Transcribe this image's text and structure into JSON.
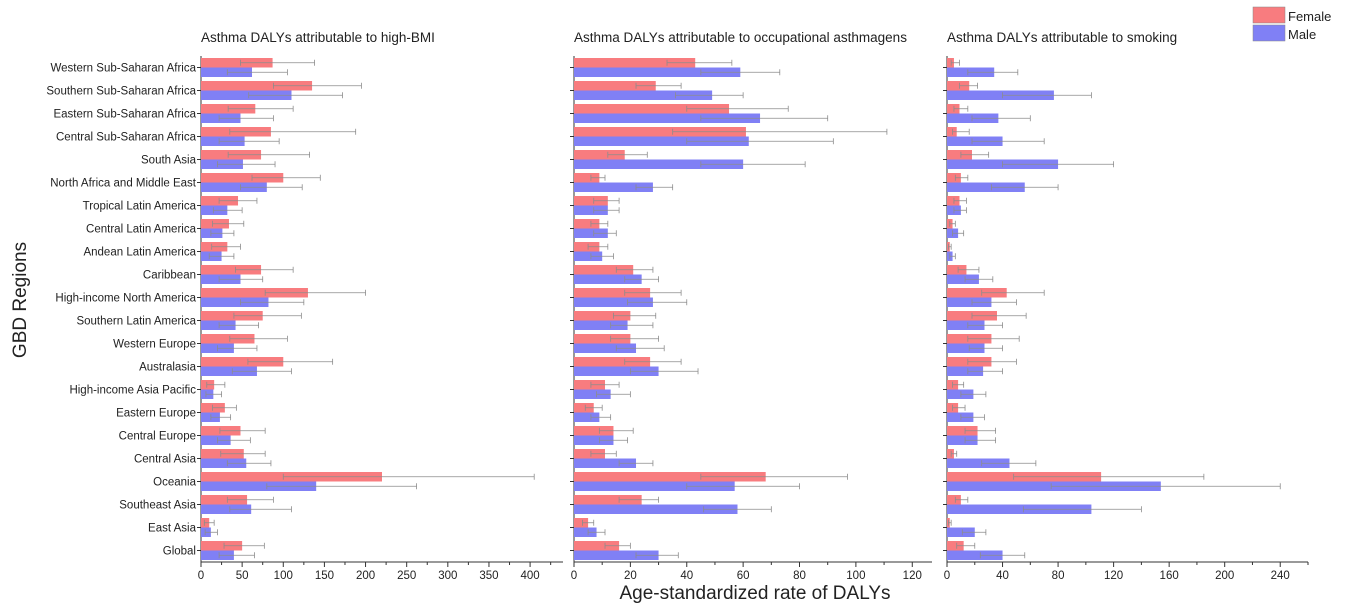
{
  "y_axis_title": "GBD Regions",
  "x_axis_title": "Age-standardized rate of DALYs",
  "legend": {
    "items": [
      {
        "label": "Female",
        "color": "#f87c7f"
      },
      {
        "label": "Male",
        "color": "#8080f5"
      }
    ],
    "position": "top-right"
  },
  "colors": {
    "female": "#f87c7f",
    "male": "#8080f5",
    "error_bar": "#8c8c8c"
  },
  "chart_data": {
    "type": "bar",
    "orientation": "horizontal",
    "categories": [
      "Western Sub-Saharan Africa",
      "Southern Sub-Saharan Africa",
      "Eastern Sub-Saharan Africa",
      "Central Sub-Saharan Africa",
      "South Asia",
      "North Africa and Middle East",
      "Tropical Latin America",
      "Central Latin America",
      "Andean Latin America",
      "Caribbean",
      "High-income North America",
      "Southern Latin America",
      "Western Europe",
      "Australasia",
      "High-income Asia Pacific",
      "Eastern Europe",
      "Central Europe",
      "Central Asia",
      "Oceania",
      "Southeast Asia",
      "East Asia",
      "Global"
    ],
    "panels": [
      {
        "title": "Asthma DALYs attributable to high-BMI",
        "xlim": [
          0,
          440
        ],
        "xticks": [
          0,
          50,
          100,
          150,
          200,
          250,
          300,
          350,
          400
        ],
        "series": [
          {
            "name": "Female",
            "values": [
              87,
              135,
              66,
              85,
              73,
              100,
              45,
              34,
              32,
              73,
              130,
              75,
              65,
              100,
              16,
              29,
              48,
              52,
              220,
              56,
              10,
              50
            ],
            "lower": [
              48,
              88,
              33,
              35,
              33,
              62,
              22,
              14,
              13,
              42,
              78,
              40,
              35,
              57,
              7,
              14,
              23,
              24,
              100,
              32,
              4,
              28
            ],
            "upper": [
              138,
              195,
              112,
              188,
              132,
              145,
              68,
              52,
              48,
              112,
              200,
              122,
              105,
              160,
              29,
              43,
              78,
              78,
              405,
              88,
              16,
              77
            ]
          },
          {
            "name": "Male",
            "values": [
              62,
              110,
              48,
              53,
              51,
              80,
              32,
              26,
              25,
              48,
              82,
              42,
              40,
              68,
              15,
              23,
              36,
              55,
              140,
              61,
              12,
              40
            ],
            "lower": [
              32,
              58,
              22,
              22,
              20,
              48,
              15,
              12,
              10,
              22,
              48,
              22,
              20,
              38,
              6,
              12,
              20,
              32,
              80,
              35,
              5,
              22
            ],
            "upper": [
              105,
              172,
              88,
              95,
              90,
              123,
              50,
              40,
              40,
              75,
              125,
              70,
              68,
              110,
              25,
              36,
              60,
              85,
              262,
              110,
              20,
              65
            ]
          }
        ]
      },
      {
        "title": "Asthma DALYs attributable to occupational asthmagens",
        "xlim": [
          0,
          127
        ],
        "xticks": [
          0,
          20,
          40,
          60,
          80,
          100,
          120
        ],
        "series": [
          {
            "name": "Female",
            "values": [
              43,
              29,
              55,
              61,
              18,
              9,
              12,
              9,
              9,
              21,
              27,
              20,
              20,
              27,
              11,
              7,
              14,
              11,
              68,
              24,
              5,
              16
            ],
            "lower": [
              33,
              22,
              40,
              35,
              12,
              6,
              7,
              6,
              5,
              15,
              18,
              14,
              13,
              18,
              6,
              4,
              9,
              6,
              45,
              16,
              3,
              11
            ],
            "upper": [
              56,
              38,
              76,
              111,
              26,
              11,
              16,
              12,
              12,
              28,
              38,
              29,
              30,
              38,
              16,
              10,
              21,
              15,
              97,
              30,
              7,
              20
            ]
          },
          {
            "name": "Male",
            "values": [
              59,
              49,
              66,
              62,
              60,
              28,
              12,
              12,
              10,
              24,
              28,
              19,
              22,
              30,
              13,
              9,
              14,
              22,
              57,
              58,
              8,
              30
            ],
            "lower": [
              45,
              36,
              45,
              40,
              45,
              22,
              7,
              7,
              6,
              18,
              19,
              13,
              15,
              20,
              8,
              6,
              9,
              16,
              40,
              46,
              5,
              22
            ],
            "upper": [
              73,
              60,
              90,
              92,
              82,
              35,
              16,
              15,
              14,
              30,
              40,
              28,
              32,
              44,
              20,
              13,
              19,
              28,
              80,
              70,
              11,
              37
            ]
          }
        ]
      },
      {
        "title": "Asthma DALYs attributable to smoking",
        "xlim": [
          0,
          260
        ],
        "xticks": [
          0,
          40,
          80,
          120,
          160,
          200,
          240
        ],
        "series": [
          {
            "name": "Female",
            "values": [
              5,
              16,
              9,
              7,
              18,
              10,
              9,
              4,
              2,
              14,
              43,
              36,
              32,
              32,
              8,
              8,
              22,
              5,
              111,
              10,
              2,
              12
            ],
            "lower": [
              3,
              9,
              5,
              4,
              10,
              6,
              5,
              2,
              1,
              8,
              25,
              18,
              15,
              15,
              4,
              4,
              13,
              3,
              48,
              6,
              1,
              7
            ],
            "upper": [
              9,
              22,
              15,
              16,
              30,
              15,
              14,
              6,
              3,
              23,
              70,
              57,
              52,
              50,
              12,
              13,
              35,
              7,
              185,
              15,
              3,
              20
            ]
          },
          {
            "name": "Male",
            "values": [
              34,
              77,
              37,
              40,
              80,
              56,
              10,
              8,
              4,
              23,
              32,
              27,
              27,
              26,
              19,
              19,
              22,
              45,
              154,
              104,
              20,
              40
            ],
            "lower": [
              15,
              40,
              18,
              18,
              40,
              32,
              5,
              4,
              2,
              13,
              18,
              15,
              16,
              15,
              10,
              10,
              13,
              25,
              75,
              55,
              11,
              24
            ],
            "upper": [
              51,
              104,
              60,
              70,
              120,
              80,
              14,
              12,
              6,
              33,
              50,
              40,
              40,
              40,
              28,
              27,
              35,
              64,
              240,
              140,
              28,
              56
            ]
          }
        ]
      }
    ]
  }
}
